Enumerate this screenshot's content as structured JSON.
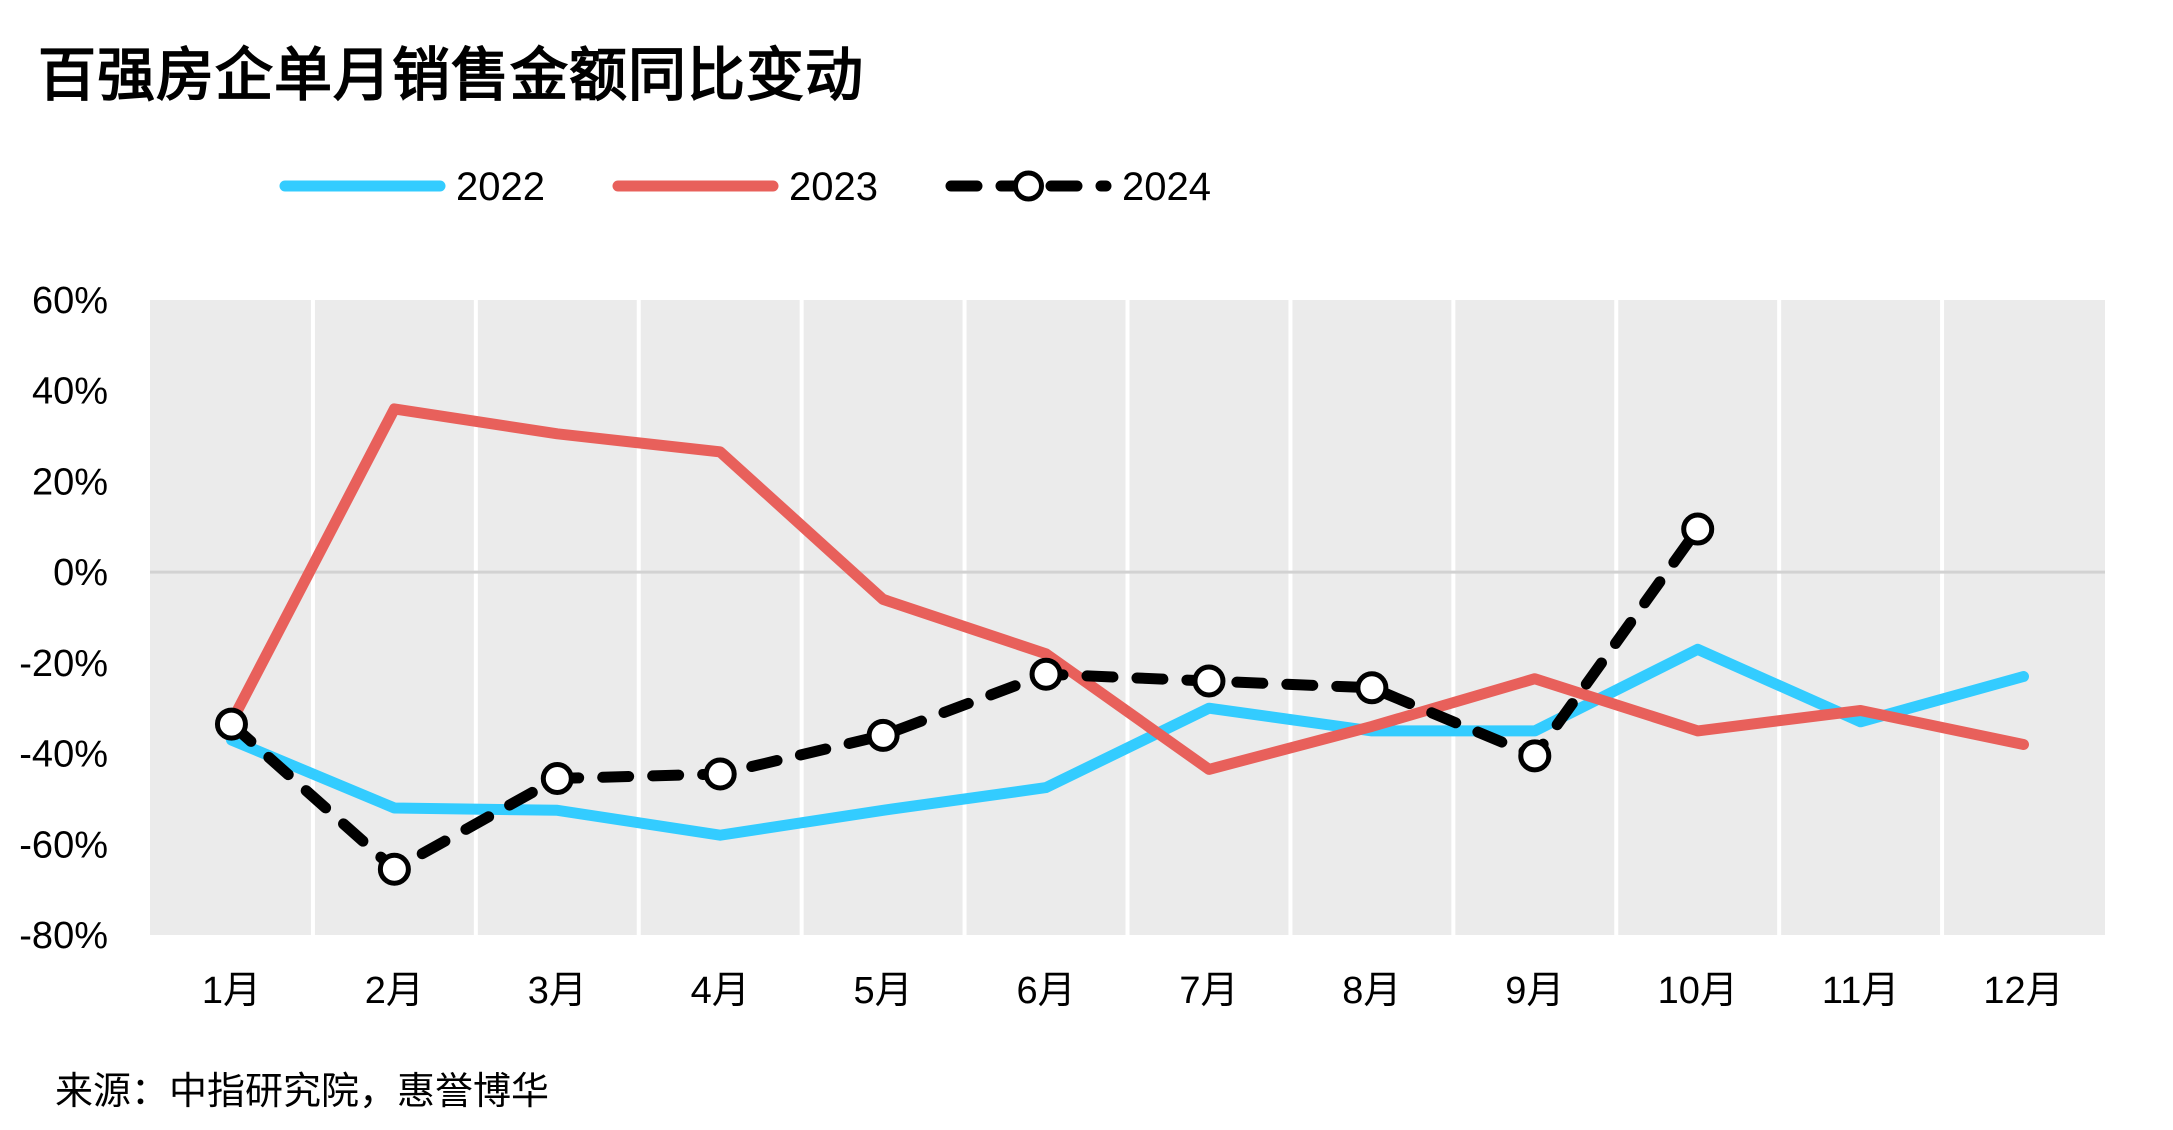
{
  "title": "百强房企单月销售金额同比变动",
  "source": "来源：中指研究院，惠誉博华",
  "chart_data": {
    "type": "line",
    "categories": [
      "1月",
      "2月",
      "3月",
      "4月",
      "5月",
      "6月",
      "7月",
      "8月",
      "9月",
      "10月",
      "11月",
      "12月"
    ],
    "series": [
      {
        "name": "2022",
        "color": "#33ccff",
        "style": "solid",
        "values": [
          -37,
          -52,
          -52.5,
          -58,
          -52.5,
          -47.5,
          -30,
          -35,
          -35,
          -17,
          -33,
          -23
        ]
      },
      {
        "name": "2023",
        "color": "#e8605b",
        "style": "solid",
        "values": [
          -33,
          36,
          30.5,
          26.5,
          -6,
          -18,
          -43.5,
          -34,
          -23.5,
          -35,
          -30.5,
          -38
        ]
      },
      {
        "name": "2024",
        "color": "#000000",
        "style": "dashed-with-hollow-markers",
        "values": [
          -33.5,
          -65.5,
          -45.5,
          -44.5,
          -36,
          -22.5,
          -24,
          -25.5,
          -40.5,
          9.5,
          null,
          null
        ]
      }
    ],
    "ylim": [
      -80,
      60
    ],
    "yticks": [
      60,
      40,
      20,
      0,
      -20,
      -40,
      -60,
      -80
    ],
    "ytick_labels": [
      "60%",
      "40%",
      "20%",
      "0%",
      "-20%",
      "-40%",
      "-60%",
      "-80%"
    ],
    "xlabel": "",
    "ylabel": "",
    "grid": "vertical",
    "legend_position": "top-left"
  }
}
